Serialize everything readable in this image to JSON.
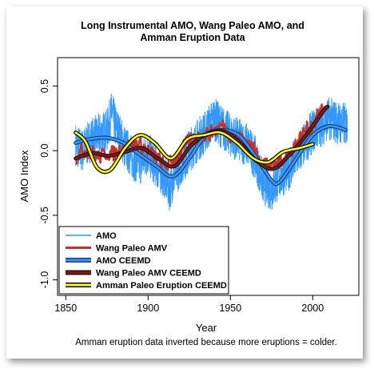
{
  "chart_data": {
    "type": "line",
    "title_lines": [
      "Long Instrumental AMO, Wang Paleo AMO, and",
      "Amman Eruption Data"
    ],
    "xlabel": "Year",
    "ylabel": "AMO Index",
    "xlim": [
      1845,
      2028
    ],
    "ylim": [
      -1.12,
      0.72
    ],
    "x_ticks": [
      1850,
      1900,
      1950,
      2000
    ],
    "y_ticks": [
      -1.0,
      -0.5,
      0.0,
      0.5
    ],
    "y_tick_labels": [
      "-1.0",
      "-0.5",
      "0.0",
      "0.5"
    ],
    "note": "Amman eruption data inverted because more eruptions = colder.",
    "legend_position": "bottom-left",
    "series": [
      {
        "name": "AMO",
        "color": "#3399ff",
        "style": "noisy-monthly",
        "x": [
          1856,
          1860,
          1865,
          1870,
          1875,
          1878,
          1880,
          1885,
          1890,
          1895,
          1900,
          1905,
          1910,
          1913,
          1915,
          1920,
          1925,
          1930,
          1935,
          1940,
          1945,
          1950,
          1955,
          1960,
          1965,
          1970,
          1975,
          1980,
          1985,
          1990,
          1995,
          2000,
          2005,
          2010,
          2015,
          2021
        ],
        "y": [
          0.05,
          0.0,
          0.08,
          0.12,
          0.15,
          0.3,
          0.2,
          0.05,
          -0.05,
          -0.1,
          -0.02,
          -0.12,
          -0.2,
          -0.3,
          -0.22,
          -0.1,
          0.0,
          0.08,
          0.15,
          0.25,
          0.18,
          0.12,
          0.08,
          0.05,
          -0.05,
          -0.25,
          -0.3,
          -0.2,
          -0.15,
          -0.05,
          0.05,
          0.15,
          0.2,
          0.25,
          0.22,
          0.2
        ]
      },
      {
        "name": "Wang Paleo AMV",
        "color": "#c8322d",
        "style": "noisy-annual",
        "x": [
          1856,
          1860,
          1865,
          1870,
          1875,
          1880,
          1885,
          1890,
          1895,
          1900,
          1905,
          1910,
          1915,
          1920,
          1925,
          1930,
          1935,
          1940,
          1945,
          1950,
          1955,
          1960,
          1965,
          1970,
          1975,
          1980,
          1985,
          1990,
          1995,
          2000,
          2005,
          2009
        ],
        "y": [
          -0.05,
          0.0,
          0.0,
          -0.05,
          -0.02,
          -0.02,
          0.02,
          0.05,
          0.05,
          0.0,
          -0.05,
          -0.12,
          -0.08,
          0.0,
          0.08,
          0.1,
          0.12,
          0.15,
          0.2,
          0.12,
          0.1,
          0.08,
          0.0,
          -0.08,
          -0.12,
          -0.08,
          -0.02,
          0.05,
          0.15,
          0.2,
          0.3,
          0.35
        ]
      },
      {
        "name": "AMO CEEMD",
        "color": "#1f3f7a",
        "fill": "#3399ff",
        "style": "smooth",
        "x": [
          1856,
          1865,
          1875,
          1885,
          1895,
          1905,
          1915,
          1925,
          1935,
          1945,
          1955,
          1965,
          1975,
          1980,
          1990,
          2000,
          2010,
          2020
        ],
        "y": [
          0.06,
          0.09,
          0.1,
          0.06,
          -0.03,
          -0.12,
          -0.2,
          -0.06,
          0.12,
          0.16,
          0.12,
          -0.04,
          -0.23,
          -0.24,
          -0.06,
          0.12,
          0.19,
          0.16
        ]
      },
      {
        "name": "Wang Paleo AMV CEEMD",
        "color": "#2a1010",
        "fill": "#7a1a14",
        "style": "smooth",
        "x": [
          1856,
          1866,
          1876,
          1886,
          1896,
          1906,
          1916,
          1926,
          1936,
          1946,
          1956,
          1966,
          1976,
          1986,
          1996,
          2006,
          2009
        ],
        "y": [
          -0.06,
          -0.02,
          -0.04,
          -0.01,
          0.02,
          -0.06,
          -0.12,
          0.04,
          0.13,
          0.15,
          0.06,
          -0.08,
          -0.14,
          -0.03,
          0.12,
          0.3,
          0.34
        ]
      },
      {
        "name": "Amman Paleo Eruption CEEMD",
        "color": "#000000",
        "fill": "#ffff00",
        "style": "smooth",
        "x": [
          1856,
          1862,
          1869,
          1877,
          1886,
          1895,
          1904,
          1914,
          1924,
          1934,
          1944,
          1954,
          1964,
          1973,
          1982,
          1992,
          2000
        ],
        "y": [
          0.14,
          0.07,
          -0.13,
          -0.15,
          0.02,
          0.12,
          0.06,
          -0.06,
          0.09,
          0.12,
          0.14,
          0.06,
          -0.06,
          -0.09,
          -0.01,
          0.02,
          0.05
        ]
      }
    ]
  }
}
